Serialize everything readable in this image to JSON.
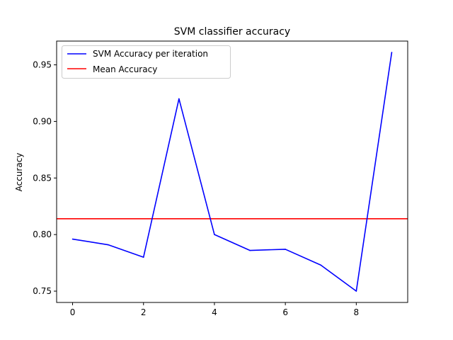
{
  "chart_data": {
    "type": "line",
    "title": "SVM classifier accuracy",
    "xlabel": "",
    "ylabel": "Accuracy",
    "xlim": [
      -0.45,
      9.45
    ],
    "ylim": [
      0.74,
      0.971
    ],
    "x_ticks": [
      0,
      2,
      4,
      6,
      8
    ],
    "x_tick_labels": [
      "0",
      "2",
      "4",
      "6",
      "8"
    ],
    "y_ticks": [
      0.75,
      0.8,
      0.85,
      0.9,
      0.95
    ],
    "y_tick_labels": [
      "0.75",
      "0.80",
      "0.85",
      "0.90",
      "0.95"
    ],
    "grid": false,
    "legend_position": "top-left",
    "series": [
      {
        "name": "SVM Accuracy per iteration",
        "color": "#0000ff",
        "x": [
          0,
          1,
          2,
          3,
          4,
          5,
          6,
          7,
          8,
          9
        ],
        "y": [
          0.796,
          0.791,
          0.78,
          0.92,
          0.8,
          0.786,
          0.787,
          0.773,
          0.75,
          0.961
        ]
      }
    ],
    "hlines": [
      {
        "name": "Mean Accuracy",
        "color": "#ff0000",
        "y": 0.814
      }
    ]
  }
}
